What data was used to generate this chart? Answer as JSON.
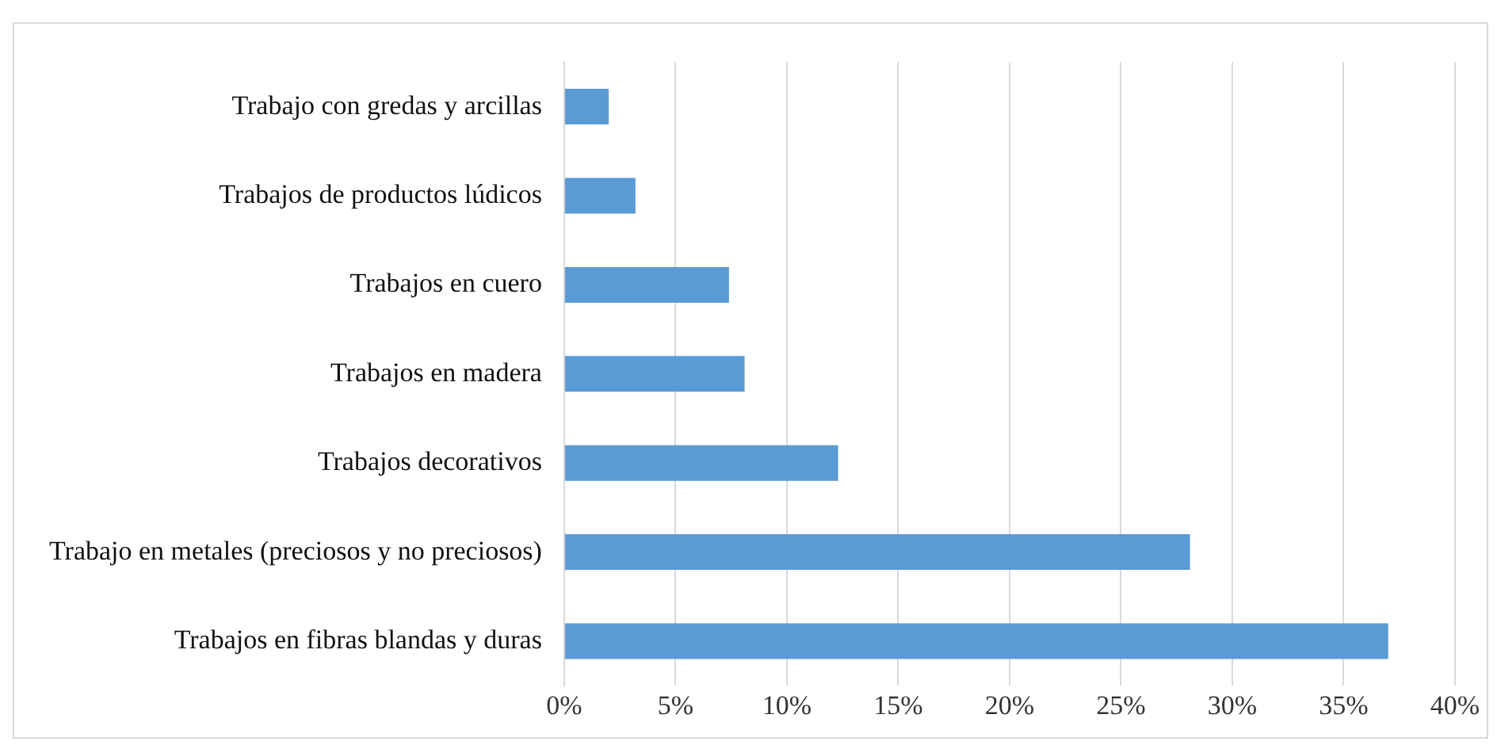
{
  "chart_data": {
    "type": "bar",
    "orientation": "horizontal",
    "categories": [
      "Trabajo con gredas y arcillas",
      "Trabajos de productos lúdicos",
      "Trabajos en cuero",
      "Trabajos en madera",
      "Trabajos decorativos",
      "Trabajo en metales (preciosos y no preciosos)",
      "Trabajos en fibras blandas y duras"
    ],
    "values": [
      2.0,
      3.2,
      7.4,
      8.1,
      12.3,
      28.1,
      37.0
    ],
    "color": "#5b9bd5",
    "xlim": [
      0,
      40
    ],
    "xticks": [
      {
        "value": 0,
        "label": "0%"
      },
      {
        "value": 5,
        "label": "5%"
      },
      {
        "value": 10,
        "label": "10%"
      },
      {
        "value": 15,
        "label": "15%"
      },
      {
        "value": 20,
        "label": "20%"
      },
      {
        "value": 25,
        "label": "25%"
      },
      {
        "value": 30,
        "label": "30%"
      },
      {
        "value": 35,
        "label": "35%"
      },
      {
        "value": 40,
        "label": "40%"
      }
    ],
    "grid": "x",
    "legend": false
  }
}
